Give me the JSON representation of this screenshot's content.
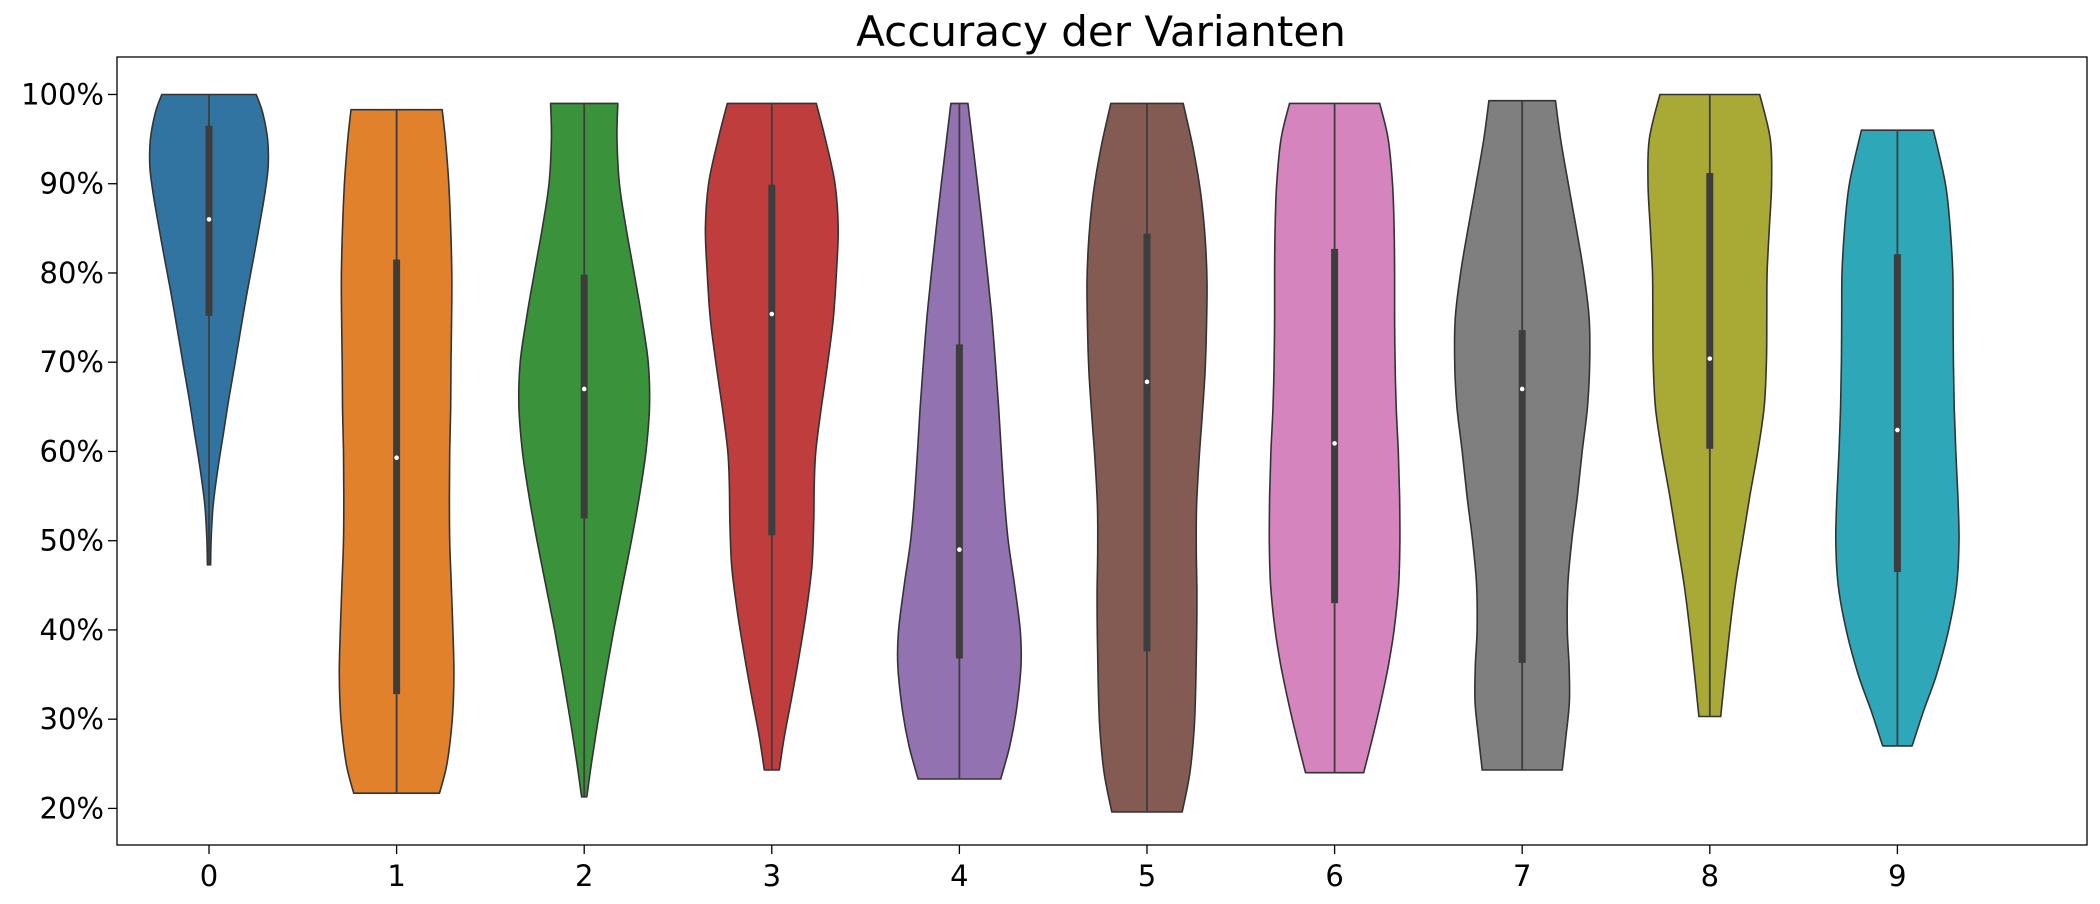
{
  "chart_data": {
    "type": "violin",
    "title": "Accuracy der Varianten",
    "xlabel": "",
    "ylabel": "",
    "categories": [
      "0",
      "1",
      "2",
      "3",
      "4",
      "5",
      "6",
      "7",
      "8",
      "9"
    ],
    "yticks": [
      "20%",
      "30%",
      "40%",
      "50%",
      "60%",
      "70%",
      "80%",
      "90%",
      "100%"
    ],
    "ylim": [
      15.9,
      104.2
    ],
    "grid": false,
    "colors": [
      "#3274a1",
      "#e1812c",
      "#3a923a",
      "#c03d3e",
      "#9372b2",
      "#845b53",
      "#d684bd",
      "#7f7f7f",
      "#a9aa35",
      "#2ea8b8"
    ],
    "series": [
      {
        "category": "0",
        "min": 47.3,
        "max": 100.0,
        "q1": 75.2,
        "median": 86.0,
        "q3": 96.5,
        "profile": [
          [
            47.3,
            1.0
          ],
          [
            50,
            1.3
          ],
          [
            54,
            2.6
          ],
          [
            58,
            5.5
          ],
          [
            62,
            9.0
          ],
          [
            66,
            12.5
          ],
          [
            70,
            16.4
          ],
          [
            74,
            20.1
          ],
          [
            78,
            24.0
          ],
          [
            82,
            28.2
          ],
          [
            86,
            32.2
          ],
          [
            89,
            35.0
          ],
          [
            92,
            37.0
          ],
          [
            95,
            36.6
          ],
          [
            98,
            33.5
          ],
          [
            100,
            29.5
          ]
        ]
      },
      {
        "category": "1",
        "min": 21.7,
        "max": 98.3,
        "q1": 32.8,
        "median": 59.3,
        "q3": 81.5,
        "profile": [
          [
            21.7,
            26.8
          ],
          [
            25,
            31.5
          ],
          [
            30,
            34.8
          ],
          [
            35,
            35.8
          ],
          [
            40,
            35.2
          ],
          [
            45,
            34.2
          ],
          [
            50,
            33.2
          ],
          [
            55,
            33.0
          ],
          [
            60,
            33.2
          ],
          [
            65,
            33.8
          ],
          [
            70,
            34.0
          ],
          [
            75,
            34.4
          ],
          [
            80,
            34.5
          ],
          [
            85,
            33.8
          ],
          [
            90,
            32.6
          ],
          [
            95,
            30.5
          ],
          [
            98.3,
            28.5
          ]
        ]
      },
      {
        "category": "2",
        "min": 21.3,
        "max": 99.0,
        "q1": 52.5,
        "median": 67.0,
        "q3": 79.8,
        "profile": [
          [
            21.3,
            1.6
          ],
          [
            25,
            4.5
          ],
          [
            30,
            8.8
          ],
          [
            35,
            13.5
          ],
          [
            40,
            18.5
          ],
          [
            45,
            24.0
          ],
          [
            50,
            29.5
          ],
          [
            55,
            34.5
          ],
          [
            60,
            38.6
          ],
          [
            65,
            40.8
          ],
          [
            70,
            40.0
          ],
          [
            75,
            36.0
          ],
          [
            80,
            31.2
          ],
          [
            85,
            26.2
          ],
          [
            90,
            22.0
          ],
          [
            95,
            20.5
          ],
          [
            99,
            21.0
          ]
        ]
      },
      {
        "category": "3",
        "min": 24.3,
        "max": 99.0,
        "q1": 50.6,
        "median": 75.4,
        "q3": 89.9,
        "profile": [
          [
            24.3,
            4.7
          ],
          [
            28,
            7.8
          ],
          [
            32,
            12.0
          ],
          [
            37,
            17.0
          ],
          [
            42,
            21.5
          ],
          [
            47,
            25.0
          ],
          [
            52,
            26.2
          ],
          [
            56,
            26.5
          ],
          [
            60,
            27.5
          ],
          [
            65,
            31.0
          ],
          [
            70,
            35.0
          ],
          [
            75,
            38.5
          ],
          [
            80,
            40.4
          ],
          [
            85,
            41.5
          ],
          [
            90,
            39.5
          ],
          [
            95,
            33.5
          ],
          [
            99,
            27.8
          ]
        ]
      },
      {
        "category": "4",
        "min": 23.3,
        "max": 99.0,
        "q1": 36.8,
        "median": 49.0,
        "q3": 72.0,
        "profile": [
          [
            23.3,
            25.8
          ],
          [
            27,
            31.5
          ],
          [
            31,
            35.6
          ],
          [
            36,
            38.5
          ],
          [
            40,
            38.0
          ],
          [
            45,
            34.5
          ],
          [
            50,
            30.5
          ],
          [
            55,
            28.0
          ],
          [
            60,
            26.2
          ],
          [
            65,
            24.5
          ],
          [
            70,
            22.5
          ],
          [
            75,
            20.3
          ],
          [
            80,
            17.5
          ],
          [
            85,
            14.5
          ],
          [
            90,
            11.3
          ],
          [
            95,
            8.0
          ],
          [
            99,
            5.3
          ]
        ]
      },
      {
        "category": "5",
        "min": 19.6,
        "max": 99.0,
        "q1": 37.6,
        "median": 67.8,
        "q3": 84.4,
        "profile": [
          [
            19.6,
            22.0
          ],
          [
            24,
            26.8
          ],
          [
            29,
            29.5
          ],
          [
            34,
            30.5
          ],
          [
            39,
            31.0
          ],
          [
            44,
            31.2
          ],
          [
            49,
            30.8
          ],
          [
            54,
            31.0
          ],
          [
            59,
            32.5
          ],
          [
            64,
            34.5
          ],
          [
            69,
            36.3
          ],
          [
            74,
            37.2
          ],
          [
            79,
            37.5
          ],
          [
            84,
            36.3
          ],
          [
            89,
            33.5
          ],
          [
            94,
            28.8
          ],
          [
            99,
            22.6
          ]
        ]
      },
      {
        "category": "6",
        "min": 24.0,
        "max": 99.0,
        "q1": 43.0,
        "median": 60.9,
        "q3": 82.7,
        "profile": [
          [
            24.0,
            18.2
          ],
          [
            28,
            23.8
          ],
          [
            32,
            29.0
          ],
          [
            36,
            33.6
          ],
          [
            40,
            37.2
          ],
          [
            45,
            40.0
          ],
          [
            50,
            40.8
          ],
          [
            55,
            40.6
          ],
          [
            60,
            39.8
          ],
          [
            65,
            38.5
          ],
          [
            70,
            37.8
          ],
          [
            75,
            37.5
          ],
          [
            80,
            37.5
          ],
          [
            85,
            37.2
          ],
          [
            90,
            36.2
          ],
          [
            95,
            33.5
          ],
          [
            99,
            28.2
          ]
        ]
      },
      {
        "category": "7",
        "min": 24.3,
        "max": 99.3,
        "q1": 36.3,
        "median": 67.0,
        "q3": 73.6,
        "profile": [
          [
            24.3,
            25.0
          ],
          [
            28,
            27.3
          ],
          [
            32,
            29.5
          ],
          [
            36,
            29.3
          ],
          [
            40,
            28.2
          ],
          [
            45,
            28.5
          ],
          [
            50,
            31.0
          ],
          [
            55,
            34.5
          ],
          [
            60,
            37.5
          ],
          [
            65,
            40.8
          ],
          [
            70,
            42.2
          ],
          [
            75,
            41.8
          ],
          [
            80,
            38.5
          ],
          [
            85,
            33.8
          ],
          [
            90,
            28.8
          ],
          [
            95,
            24.0
          ],
          [
            99.3,
            20.8
          ]
        ]
      },
      {
        "category": "8",
        "min": 30.3,
        "max": 100.0,
        "q1": 60.3,
        "median": 70.4,
        "q3": 91.2,
        "profile": [
          [
            30.3,
            6.8
          ],
          [
            35,
            9.5
          ],
          [
            40,
            12.5
          ],
          [
            45,
            16.0
          ],
          [
            50,
            20.5
          ],
          [
            55,
            25.0
          ],
          [
            60,
            30.0
          ],
          [
            65,
            34.0
          ],
          [
            70,
            35.4
          ],
          [
            75,
            35.6
          ],
          [
            80,
            35.8
          ],
          [
            85,
            37.2
          ],
          [
            90,
            38.6
          ],
          [
            95,
            37.8
          ],
          [
            100,
            31.2
          ]
        ]
      },
      {
        "category": "9",
        "min": 27.0,
        "max": 96.0,
        "q1": 46.5,
        "median": 62.4,
        "q3": 82.1,
        "profile": [
          [
            27.0,
            9.2
          ],
          [
            31,
            16.5
          ],
          [
            35,
            24.5
          ],
          [
            40,
            32.0
          ],
          [
            45,
            37.0
          ],
          [
            50,
            38.5
          ],
          [
            55,
            37.8
          ],
          [
            60,
            36.5
          ],
          [
            65,
            35.5
          ],
          [
            70,
            35.0
          ],
          [
            75,
            34.8
          ],
          [
            80,
            34.6
          ],
          [
            85,
            33.0
          ],
          [
            90,
            30.0
          ],
          [
            96,
            22.5
          ]
        ]
      }
    ]
  }
}
